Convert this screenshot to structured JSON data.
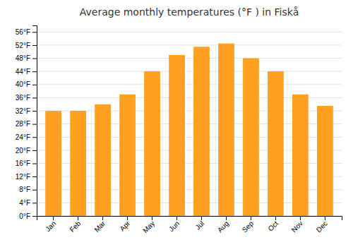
{
  "chart_data": {
    "type": "bar",
    "title": "Average monthly temperatures (°F ) in Fiskå",
    "categories": [
      "Jan",
      "Feb",
      "Mar",
      "Apr",
      "May",
      "Jun",
      "Jul",
      "Aug",
      "Sep",
      "Oct",
      "Nov",
      "Dec"
    ],
    "values": [
      32,
      32,
      34,
      37,
      44,
      49,
      51.5,
      52.5,
      48,
      44,
      37,
      33.5
    ],
    "color": "#ffa020",
    "ylim": [
      0,
      58
    ],
    "yticks": [
      {
        "value": 0,
        "label": "0°F"
      },
      {
        "value": 4,
        "label": "4°F"
      },
      {
        "value": 8,
        "label": "8°F"
      },
      {
        "value": 12,
        "label": "12°F"
      },
      {
        "value": 16,
        "label": "16°F"
      },
      {
        "value": 20,
        "label": "20°F"
      },
      {
        "value": 24,
        "label": "24°F"
      },
      {
        "value": 28,
        "label": "28°F"
      },
      {
        "value": 32,
        "label": "32°F"
      },
      {
        "value": 36,
        "label": "36°F"
      },
      {
        "value": 40,
        "label": "40°F"
      },
      {
        "value": 44,
        "label": "44°F"
      },
      {
        "value": 48,
        "label": "48°F"
      },
      {
        "value": 52,
        "label": "52°F"
      },
      {
        "value": 56,
        "label": "56°F"
      }
    ],
    "grid": true
  }
}
